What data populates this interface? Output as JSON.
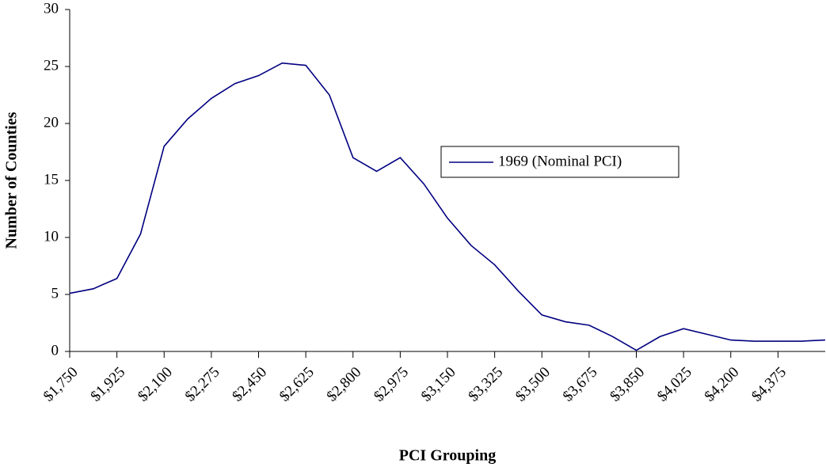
{
  "chart_data": {
    "type": "line",
    "x_label": "PCI Grouping",
    "y_label": "Number of Counties",
    "x": [
      1750,
      1837.5,
      1925,
      2012.5,
      2100,
      2187.5,
      2275,
      2362.5,
      2450,
      2537.5,
      2625,
      2712.5,
      2800,
      2887.5,
      2975,
      3062.5,
      3150,
      3237.5,
      3325,
      3412.5,
      3500,
      3587.5,
      3675,
      3762.5,
      3850,
      3937.5,
      4025,
      4112.5,
      4200,
      4287.5,
      4375,
      4462.5,
      4550
    ],
    "series": [
      {
        "name": "1969 (Nominal PCI)",
        "color": "#000080",
        "values": [
          5.1,
          5.5,
          6.4,
          10.3,
          18.0,
          20.4,
          22.2,
          23.5,
          24.2,
          25.3,
          25.1,
          22.5,
          17.0,
          15.8,
          17.0,
          14.7,
          11.7,
          9.3,
          7.6,
          5.3,
          3.2,
          2.6,
          2.3,
          1.3,
          0.1,
          1.3,
          2.0,
          1.5,
          1.0,
          0.9,
          0.9,
          0.9,
          1.0
        ]
      }
    ],
    "xlim": [
      1750,
      4550
    ],
    "xticks": [
      {
        "value": 1750,
        "label": "$1,750"
      },
      {
        "value": 1925,
        "label": "$1,925"
      },
      {
        "value": 2100,
        "label": "$2,100"
      },
      {
        "value": 2275,
        "label": "$2,275"
      },
      {
        "value": 2450,
        "label": "$2,450"
      },
      {
        "value": 2625,
        "label": "$2,625"
      },
      {
        "value": 2800,
        "label": "$2,800"
      },
      {
        "value": 2975,
        "label": "$2,975"
      },
      {
        "value": 3150,
        "label": "$3,150"
      },
      {
        "value": 3325,
        "label": "$3,325"
      },
      {
        "value": 3500,
        "label": "$3,500"
      },
      {
        "value": 3675,
        "label": "$3,675"
      },
      {
        "value": 3850,
        "label": "$3,850"
      },
      {
        "value": 4025,
        "label": "$4,025"
      },
      {
        "value": 4200,
        "label": "$4,200"
      },
      {
        "value": 4375,
        "label": "$4,375"
      }
    ],
    "ylim": [
      0,
      30
    ],
    "yticks": [
      0,
      5,
      10,
      15,
      20,
      25,
      30
    ],
    "legend": "center-right"
  }
}
